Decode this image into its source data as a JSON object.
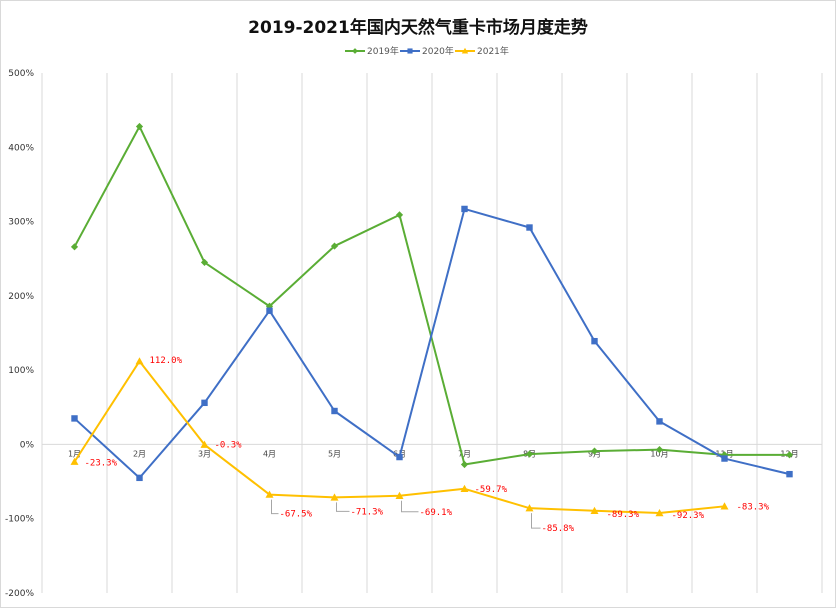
{
  "chart_data": {
    "type": "line",
    "title": "2019-2021年国内天然气重卡市场月度走势",
    "xlabel": "",
    "ylabel": "",
    "categories": [
      "1月",
      "2月",
      "3月",
      "4月",
      "5月",
      "6月",
      "7月",
      "8月",
      "9月",
      "10月",
      "11月",
      "12月"
    ],
    "ylim": [
      -200,
      500
    ],
    "yticks": [
      500,
      400,
      300,
      200,
      100,
      0,
      -100,
      -200
    ],
    "ytick_labels": [
      "500%",
      "400%",
      "300%",
      "200%",
      "100%",
      "0%",
      "-100%",
      "-200%"
    ],
    "grid": "vertical",
    "legend_position": "top",
    "series": [
      {
        "name": "2019年",
        "color": "#5aad35",
        "marker": "diamond",
        "values": [
          266,
          428,
          245,
          186,
          267,
          309,
          -27,
          -13,
          -9,
          -7,
          -14,
          -14
        ]
      },
      {
        "name": "2020年",
        "color": "#3f6fc6",
        "marker": "square",
        "values": [
          35,
          -45,
          56,
          180,
          45,
          -17,
          317,
          292,
          139,
          31,
          -19,
          -40
        ]
      },
      {
        "name": "2021年",
        "color": "#ffc000",
        "marker": "triangle",
        "values": [
          -23.3,
          112.0,
          -0.3,
          -67.5,
          -71.3,
          -69.1,
          -59.7,
          -85.8,
          -89.3,
          -92.3,
          -83.3,
          null
        ],
        "data_labels": [
          "-23.3%",
          "112.0%",
          "-0.3%",
          "-67.5%",
          "-71.3%",
          "-69.1%",
          "-59.7%",
          "-85.8%",
          "-89.3%",
          "-92.3%",
          "-83.3%",
          ""
        ]
      }
    ]
  }
}
